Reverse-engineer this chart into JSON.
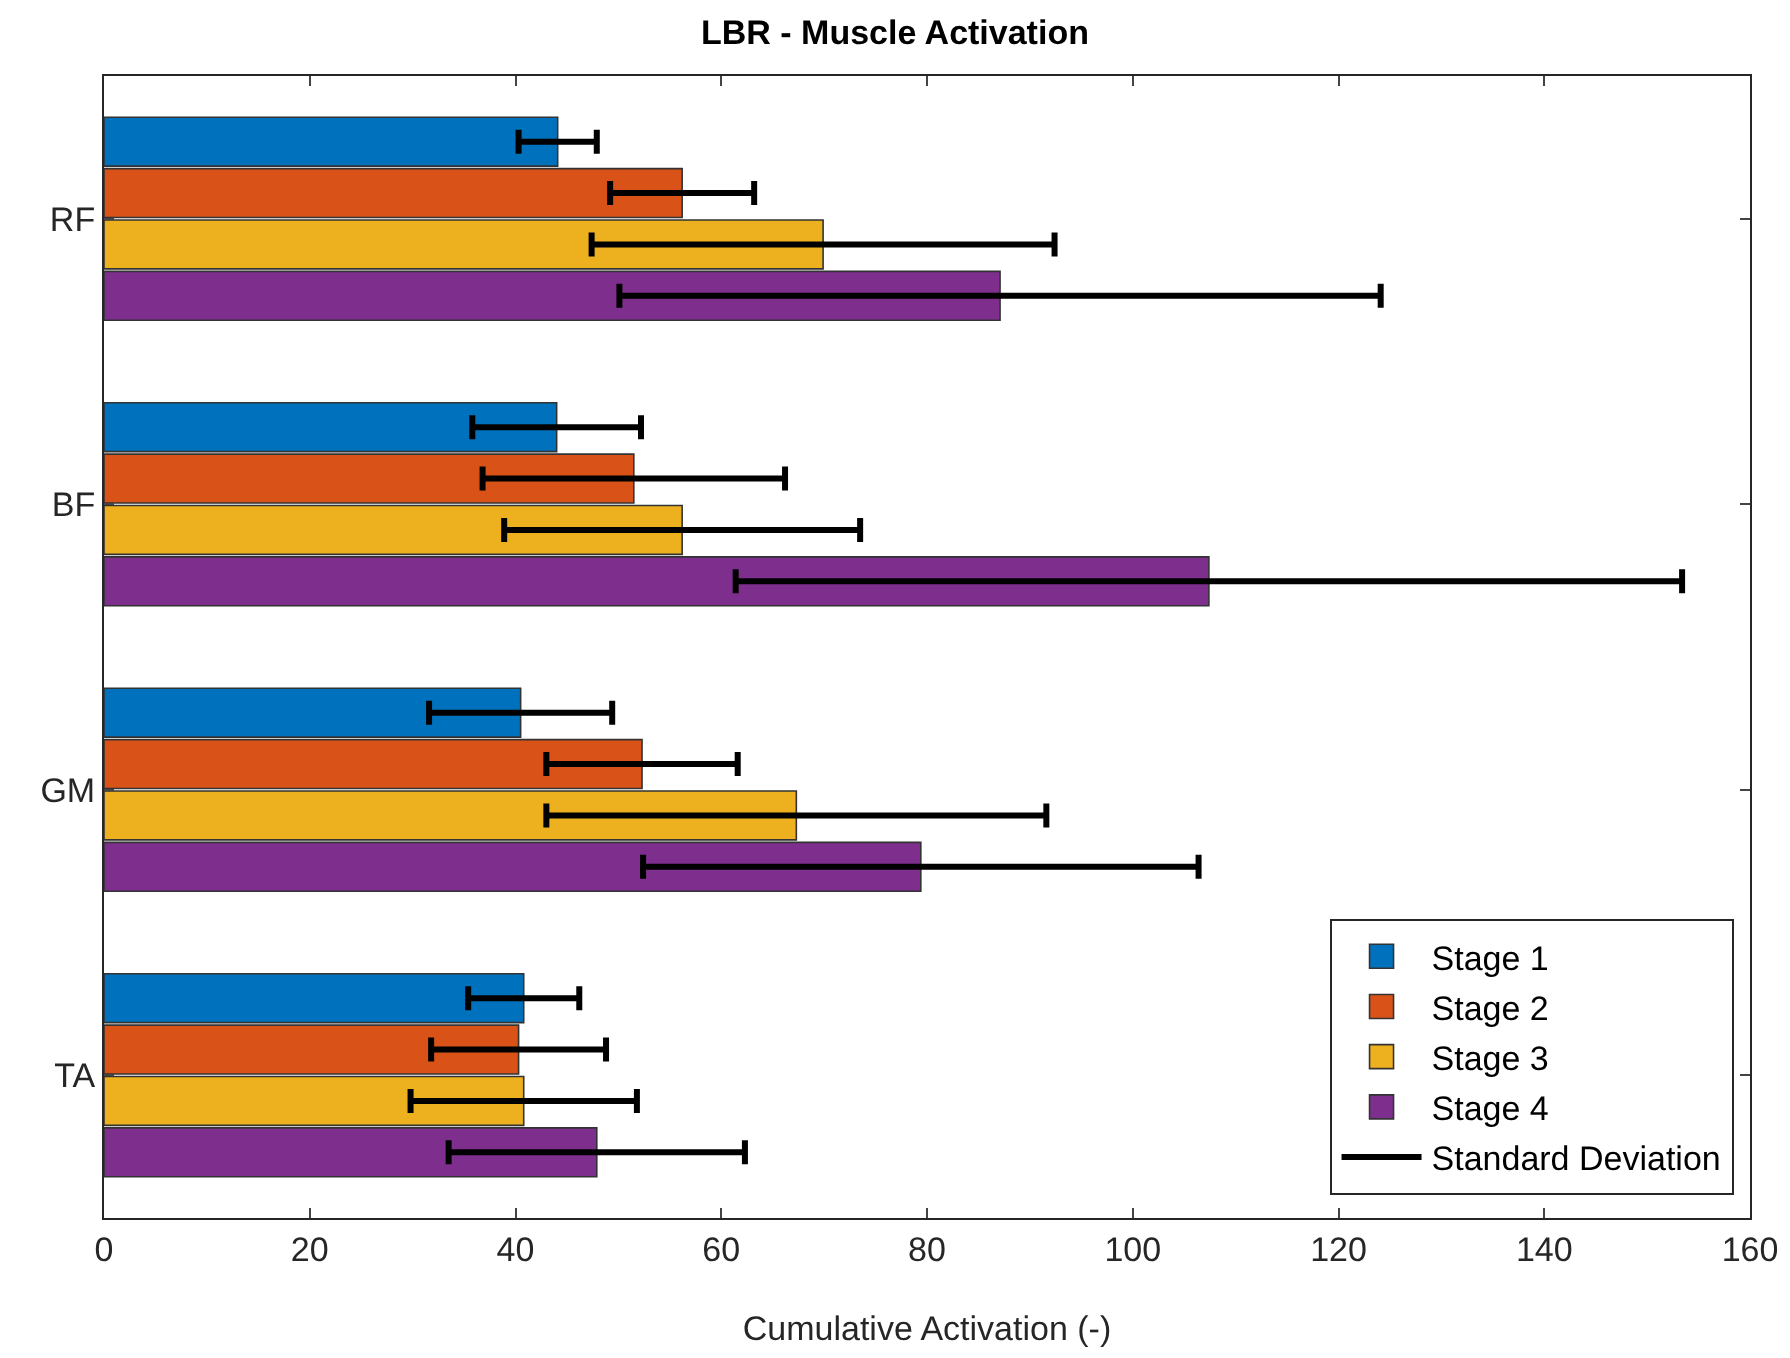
{
  "chart_data": {
    "type": "bar",
    "orientation": "horizontal",
    "title": "LBR - Muscle Activation",
    "xlabel": "Cumulative Activation (-)",
    "categories": [
      "RF",
      "BF",
      "GM",
      "TA"
    ],
    "series": [
      {
        "name": "Stage 1",
        "color": "#0072bd",
        "values": [
          44.1,
          44.0,
          40.5,
          40.8
        ],
        "errors": [
          3.8,
          8.2,
          8.9,
          5.4
        ]
      },
      {
        "name": "Stage 2",
        "color": "#d95319",
        "values": [
          56.2,
          51.5,
          52.3,
          40.3
        ],
        "errors": [
          7,
          14.7,
          9.3,
          8.5
        ]
      },
      {
        "name": "Stage 3",
        "color": "#edb120",
        "values": [
          69.9,
          56.2,
          67.3,
          40.8
        ],
        "errors": [
          22.5,
          17.3,
          24.3,
          11
        ]
      },
      {
        "name": "Stage 4",
        "color": "#7e2f8e",
        "values": [
          87.1,
          107.4,
          79.4,
          47.9
        ],
        "errors": [
          37,
          46,
          27,
          14.4
        ]
      },
      {
        "name": "Standard Deviation",
        "type": "line",
        "color": "#000000",
        "values": [
          null,
          null,
          null,
          null
        ]
      }
    ],
    "xlim": [
      0,
      160
    ],
    "xticks": [
      0,
      20,
      40,
      60,
      80,
      100,
      120,
      140,
      160
    ],
    "grid": false,
    "legend": "bottom right"
  }
}
